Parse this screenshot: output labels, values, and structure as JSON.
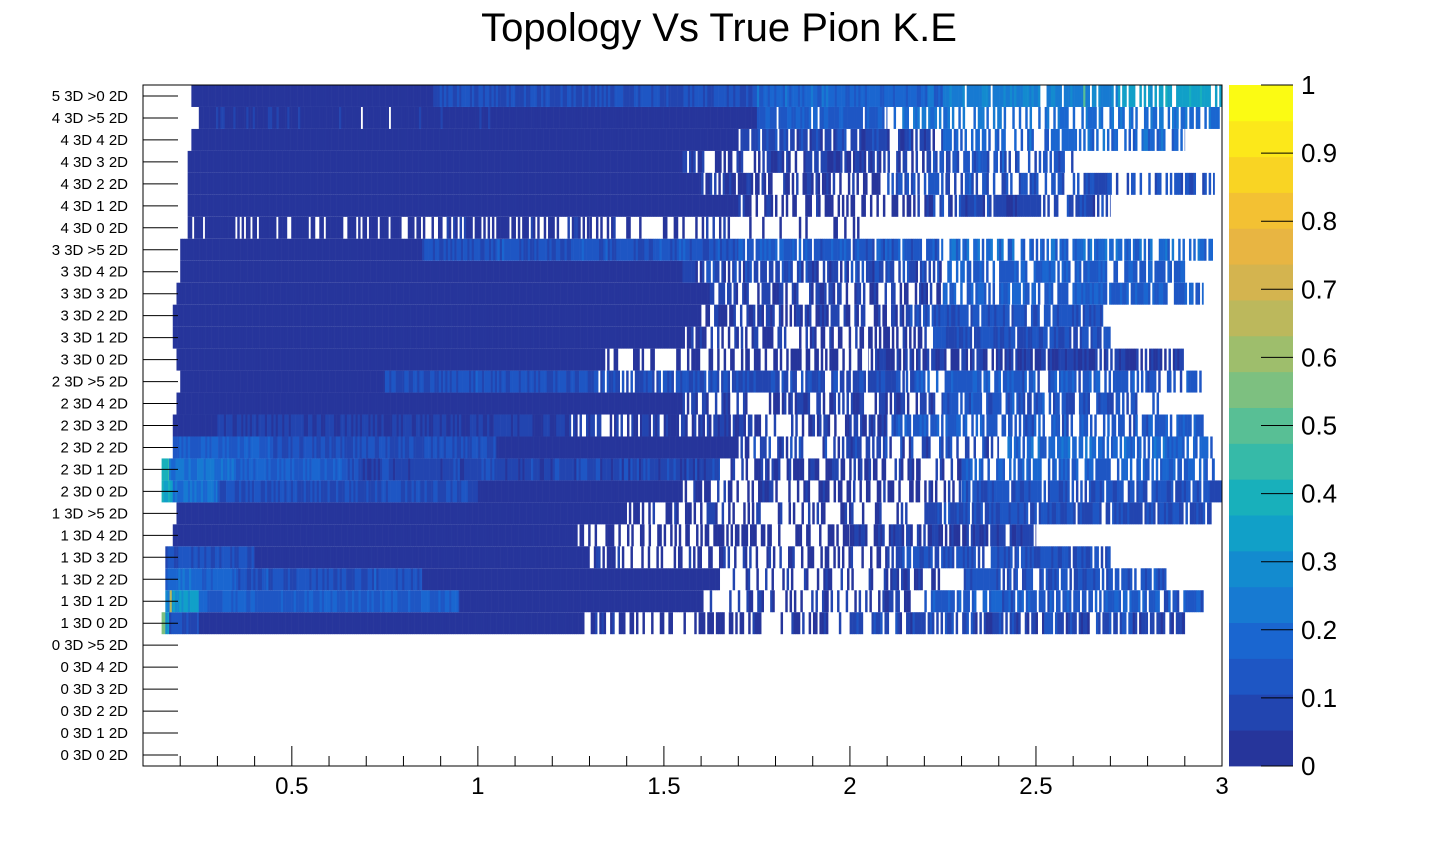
{
  "chart_data": {
    "type": "heatmap",
    "title": "Topology Vs True Pion K.E",
    "xlabel": "",
    "ylabel": "",
    "xlim": [
      0.1,
      3.0
    ],
    "x_ticks": [
      {
        "value": 0.5,
        "label": "0.5"
      },
      {
        "value": 1.0,
        "label": "1"
      },
      {
        "value": 1.5,
        "label": "1.5"
      },
      {
        "value": 2.0,
        "label": "2"
      },
      {
        "value": 2.5,
        "label": "2.5"
      },
      {
        "value": 3.0,
        "label": "3"
      }
    ],
    "y_categories": [
      "0 3D  0 2D",
      "0 3D  1 2D",
      "0 3D  2 2D",
      "0 3D  3 2D",
      "0 3D  4 2D",
      "0 3D  >5 2D",
      "1 3D  0 2D",
      "1 3D  1 2D",
      "1 3D  2 2D",
      "1 3D  3 2D",
      "1 3D  4 2D",
      "1 3D  >5 2D",
      "2 3D  0 2D",
      "2 3D  1 2D",
      "2 3D  2 2D",
      "2 3D  3 2D",
      "2 3D  4 2D",
      "2 3D  >5 2D",
      "3 3D  0 2D",
      "3 3D  1 2D",
      "3 3D  2 2D",
      "3 3D  3 2D",
      "3 3D  4 2D",
      "3 3D  >5 2D",
      "4 3D  0 2D",
      "4 3D  1 2D",
      "4 3D  2 2D",
      "4 3D  3 2D",
      "4 3D  4 2D",
      "4 3D  >5 2D",
      "5 3D  >0 2D"
    ],
    "colorbar": {
      "min": 0,
      "max": 1,
      "ticks": [
        {
          "value": 0,
          "label": "0"
        },
        {
          "value": 0.1,
          "label": "0.1"
        },
        {
          "value": 0.2,
          "label": "0.2"
        },
        {
          "value": 0.3,
          "label": "0.3"
        },
        {
          "value": 0.4,
          "label": "0.4"
        },
        {
          "value": 0.5,
          "label": "0.5"
        },
        {
          "value": 0.6,
          "label": "0.6"
        },
        {
          "value": 0.7,
          "label": "0.7"
        },
        {
          "value": 0.8,
          "label": "0.8"
        },
        {
          "value": 0.9,
          "label": "0.9"
        },
        {
          "value": 1,
          "label": "1"
        }
      ],
      "palette": [
        "#26359b",
        "#2245b0",
        "#1e56c4",
        "#1a66d0",
        "#177ad2",
        "#138bcf",
        "#11a0c8",
        "#18b0bb",
        "#36baa8",
        "#58bf95",
        "#7dc080",
        "#9ebe6c",
        "#bcb85c",
        "#d4b44f",
        "#e8b542",
        "#f3c133",
        "#f9d423",
        "#fce81a",
        "#fbfb13"
      ]
    },
    "rows": [
      {
        "label": "0 3D  0 2D",
        "segments": []
      },
      {
        "label": "0 3D  1 2D",
        "segments": []
      },
      {
        "label": "0 3D  2 2D",
        "segments": []
      },
      {
        "label": "0 3D  3 2D",
        "segments": []
      },
      {
        "label": "0 3D  4 2D",
        "segments": []
      },
      {
        "label": "0 3D  >5 2D",
        "segments": []
      },
      {
        "label": "1 3D  0 2D",
        "segments": [
          [
            0.15,
            0.16,
            0.55
          ],
          [
            0.16,
            0.17,
            0.3
          ],
          [
            0.17,
            0.25,
            0.1
          ],
          [
            0.25,
            1.28,
            0.02
          ],
          [
            1.28,
            2.0,
            0.02,
            0.45
          ],
          [
            2.0,
            2.9,
            0.08,
            0.22
          ]
        ]
      },
      {
        "label": "1 3D  1 2D",
        "segments": [
          [
            0.16,
            0.18,
            0.3
          ],
          [
            0.18,
            0.25,
            0.33
          ],
          [
            0.25,
            0.95,
            0.15
          ],
          [
            0.95,
            1.6,
            0.05
          ],
          [
            1.6,
            2.2,
            0.05,
            0.65
          ],
          [
            2.2,
            2.95,
            0.14,
            0.25
          ]
        ]
      },
      {
        "label": "1 3D  2 2D",
        "segments": [
          [
            0.16,
            0.35,
            0.18
          ],
          [
            0.35,
            0.85,
            0.12
          ],
          [
            0.85,
            1.65,
            0.03
          ],
          [
            1.65,
            2.3,
            0.05,
            0.6
          ],
          [
            2.3,
            2.85,
            0.12,
            0.2
          ]
        ]
      },
      {
        "label": "1 3D  3 2D",
        "segments": [
          [
            0.16,
            0.4,
            0.1
          ],
          [
            0.4,
            1.3,
            0.03
          ],
          [
            1.3,
            2.1,
            0.03,
            0.6
          ],
          [
            2.1,
            2.7,
            0.1,
            0.2
          ]
        ]
      },
      {
        "label": "1 3D  4 2D",
        "segments": [
          [
            0.18,
            1.25,
            0.01
          ],
          [
            1.25,
            2.0,
            0.01,
            0.5
          ],
          [
            2.0,
            2.5,
            0.06,
            0.15
          ]
        ]
      },
      {
        "label": "1 3D  >5 2D",
        "segments": [
          [
            0.19,
            1.4,
            0.01
          ],
          [
            1.4,
            2.2,
            0.04,
            0.55
          ],
          [
            2.2,
            2.98,
            0.1,
            0.18
          ]
        ]
      },
      {
        "label": "2 3D  0 2D",
        "segments": [
          [
            0.15,
            0.18,
            0.35
          ],
          [
            0.18,
            0.3,
            0.2
          ],
          [
            0.3,
            1.0,
            0.1
          ],
          [
            1.0,
            1.55,
            0.03
          ],
          [
            1.55,
            2.3,
            0.03,
            0.55
          ],
          [
            2.3,
            3.0,
            0.12,
            0.2
          ]
        ]
      },
      {
        "label": "2 3D  1 2D",
        "segments": [
          [
            0.15,
            0.17,
            0.4
          ],
          [
            0.17,
            0.35,
            0.22
          ],
          [
            0.35,
            0.65,
            0.15
          ],
          [
            0.65,
            1.65,
            0.08
          ],
          [
            1.65,
            2.3,
            0.04,
            0.45
          ],
          [
            2.3,
            2.98,
            0.16,
            0.3
          ]
        ]
      },
      {
        "label": "2 3D  2 2D",
        "segments": [
          [
            0.18,
            0.45,
            0.15
          ],
          [
            0.45,
            1.05,
            0.1
          ],
          [
            1.05,
            1.7,
            0.05
          ],
          [
            1.7,
            2.4,
            0.08,
            0.5
          ],
          [
            2.4,
            2.98,
            0.18,
            0.35
          ]
        ]
      },
      {
        "label": "2 3D  3 2D",
        "segments": [
          [
            0.18,
            0.3,
            0.02
          ],
          [
            0.3,
            1.25,
            0.06
          ],
          [
            1.25,
            2.1,
            0.06,
            0.4
          ],
          [
            2.1,
            2.95,
            0.14,
            0.3
          ]
        ]
      },
      {
        "label": "2 3D  4 2D",
        "segments": [
          [
            0.19,
            1.55,
            0.02
          ],
          [
            1.55,
            2.25,
            0.05,
            0.45
          ],
          [
            2.25,
            2.85,
            0.12,
            0.25
          ]
        ]
      },
      {
        "label": "2 3D  >5 2D",
        "segments": [
          [
            0.2,
            0.75,
            0.02
          ],
          [
            0.75,
            1.3,
            0.12
          ],
          [
            1.3,
            2.15,
            0.1,
            0.2
          ],
          [
            2.15,
            2.95,
            0.14,
            0.3
          ]
        ]
      },
      {
        "label": "3 3D  0 2D",
        "segments": [
          [
            0.19,
            1.33,
            0.0
          ],
          [
            1.33,
            2.05,
            0.01,
            0.5
          ],
          [
            2.05,
            2.9,
            0.05,
            0.2
          ]
        ]
      },
      {
        "label": "3 3D  1 2D",
        "segments": [
          [
            0.18,
            1.55,
            0.01
          ],
          [
            1.55,
            2.2,
            0.04,
            0.45
          ],
          [
            2.2,
            2.7,
            0.1,
            0.18
          ]
        ]
      },
      {
        "label": "3 3D  2 2D",
        "segments": [
          [
            0.18,
            1.6,
            0.02
          ],
          [
            1.6,
            2.15,
            0.05,
            0.45
          ],
          [
            2.15,
            2.68,
            0.12,
            0.18
          ]
        ]
      },
      {
        "label": "3 3D  3 2D",
        "segments": [
          [
            0.19,
            1.6,
            0.02
          ],
          [
            1.6,
            2.25,
            0.06,
            0.4
          ],
          [
            2.25,
            2.95,
            0.15,
            0.3
          ]
        ]
      },
      {
        "label": "3 3D  4 2D",
        "segments": [
          [
            0.2,
            1.55,
            0.03
          ],
          [
            1.55,
            2.25,
            0.08,
            0.35
          ],
          [
            2.25,
            2.9,
            0.15,
            0.25
          ]
        ]
      },
      {
        "label": "3 3D  >5 2D",
        "segments": [
          [
            0.2,
            0.85,
            0.02
          ],
          [
            0.85,
            1.7,
            0.12
          ],
          [
            1.7,
            2.25,
            0.14,
            0.15
          ],
          [
            2.25,
            2.98,
            0.18,
            0.35
          ]
        ]
      },
      {
        "label": "4 3D  0 2D",
        "segments": [
          [
            0.22,
            0.8,
            0.0,
            0.15
          ],
          [
            0.8,
            1.3,
            0.02,
            0.4
          ],
          [
            1.3,
            2.05,
            0.02,
            0.75
          ]
        ]
      },
      {
        "label": "4 3D  1 2D",
        "segments": [
          [
            0.22,
            1.7,
            0.01
          ],
          [
            1.7,
            2.2,
            0.03,
            0.55
          ],
          [
            2.2,
            2.7,
            0.08,
            0.25
          ]
        ]
      },
      {
        "label": "4 3D  2 2D",
        "segments": [
          [
            0.22,
            1.6,
            0.01
          ],
          [
            1.6,
            2.1,
            0.04,
            0.4
          ],
          [
            2.1,
            2.98,
            0.12,
            0.4
          ]
        ]
      },
      {
        "label": "4 3D  3 2D",
        "segments": [
          [
            0.22,
            1.55,
            0.02
          ],
          [
            1.55,
            2.2,
            0.05,
            0.35
          ],
          [
            2.2,
            2.6,
            0.12,
            0.4
          ]
        ]
      },
      {
        "label": "4 3D  4 2D",
        "segments": [
          [
            0.23,
            1.7,
            0.03
          ],
          [
            1.7,
            2.25,
            0.08,
            0.3
          ],
          [
            2.25,
            2.9,
            0.18,
            0.35
          ]
        ]
      },
      {
        "label": "4 3D  >5 2D",
        "segments": [
          [
            0.25,
            1.15,
            0.02,
            0.02
          ],
          [
            1.15,
            1.75,
            0.05
          ],
          [
            1.75,
            2.1,
            0.15,
            0.1
          ],
          [
            2.1,
            3.0,
            0.2,
            0.4
          ]
        ]
      },
      {
        "label": "5 3D  >0 2D",
        "segments": [
          [
            0.23,
            0.88,
            0.01
          ],
          [
            0.88,
            1.75,
            0.1
          ],
          [
            1.75,
            2.25,
            0.18
          ],
          [
            2.25,
            2.72,
            0.25,
            0.15
          ],
          [
            2.72,
            3.0,
            0.35,
            0.35
          ]
        ]
      }
    ]
  }
}
